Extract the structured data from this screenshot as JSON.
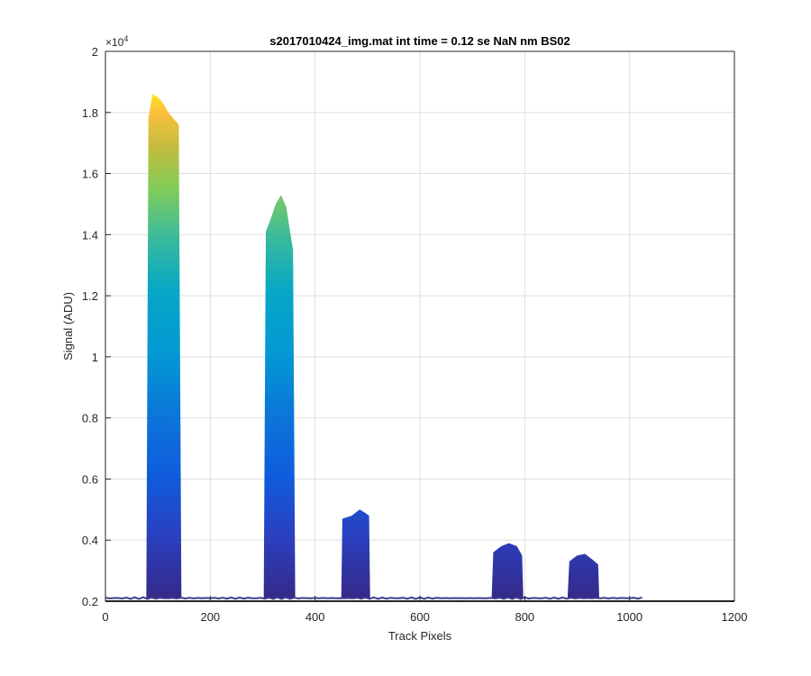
{
  "chart_data": {
    "type": "area",
    "title": "s2017010424_img.mat int time = 0.12 se  NaN nm BS02",
    "xlabel": "Track Pixels",
    "ylabel": "Signal (ADU)",
    "xlim": [
      0,
      1200
    ],
    "ylim": [
      2000,
      20000
    ],
    "y_exponent_label": "×10",
    "y_exponent_power": "4",
    "xticks": [
      "0",
      "200",
      "400",
      "600",
      "800",
      "1000",
      "1200"
    ],
    "xtick_values": [
      0,
      200,
      400,
      600,
      800,
      1000,
      1200
    ],
    "yticks": [
      "0.2",
      "0.4",
      "0.6",
      "0.8",
      "1",
      "1.2",
      "1.4",
      "1.6",
      "1.8",
      "2"
    ],
    "ytick_values": [
      2000,
      4000,
      6000,
      8000,
      10000,
      12000,
      14000,
      16000,
      18000,
      20000
    ],
    "grid": true,
    "colormap": "parula",
    "baseline": 2100,
    "x_range": [
      0,
      1024
    ],
    "peaks": [
      {
        "start": 78,
        "end": 145,
        "outline": [
          [
            78,
            2200
          ],
          [
            82,
            17800
          ],
          [
            90,
            18600
          ],
          [
            100,
            18500
          ],
          [
            110,
            18300
          ],
          [
            120,
            18000
          ],
          [
            130,
            17800
          ],
          [
            140,
            17600
          ],
          [
            145,
            2200
          ]
        ]
      },
      {
        "start": 302,
        "end": 362,
        "outline": [
          [
            302,
            2200
          ],
          [
            306,
            14100
          ],
          [
            315,
            14500
          ],
          [
            325,
            15000
          ],
          [
            335,
            15300
          ],
          [
            345,
            14900
          ],
          [
            355,
            13800
          ],
          [
            358,
            13500
          ],
          [
            362,
            2200
          ]
        ]
      },
      {
        "start": 450,
        "end": 505,
        "outline": [
          [
            450,
            2200
          ],
          [
            452,
            4700
          ],
          [
            470,
            4800
          ],
          [
            485,
            5000
          ],
          [
            495,
            4900
          ],
          [
            503,
            4800
          ],
          [
            505,
            2200
          ]
        ]
      },
      {
        "start": 737,
        "end": 797,
        "outline": [
          [
            737,
            2200
          ],
          [
            740,
            3600
          ],
          [
            755,
            3800
          ],
          [
            770,
            3900
          ],
          [
            785,
            3800
          ],
          [
            795,
            3500
          ],
          [
            797,
            2200
          ]
        ]
      },
      {
        "start": 882,
        "end": 942,
        "outline": [
          [
            882,
            2200
          ],
          [
            885,
            3300
          ],
          [
            900,
            3500
          ],
          [
            915,
            3550
          ],
          [
            930,
            3350
          ],
          [
            940,
            3200
          ],
          [
            942,
            2200
          ]
        ]
      }
    ],
    "colors": {
      "low": "#352A87",
      "mid_blue": "#0F5CDD",
      "cyan": "#06A7C6",
      "green": "#81CC59",
      "orange": "#FCBF3C",
      "high": "#F9FB0E",
      "line": "#3D3C8C"
    }
  }
}
